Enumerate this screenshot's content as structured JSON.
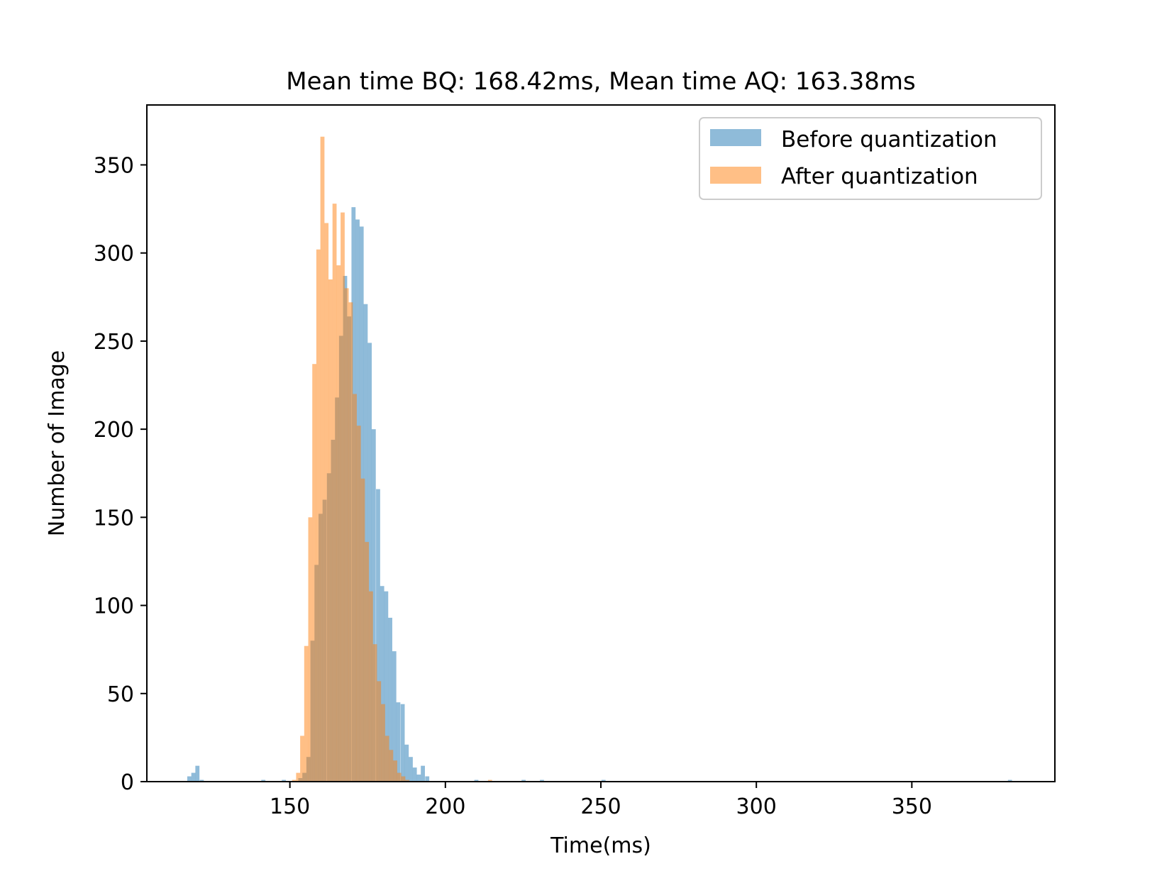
{
  "chart_data": {
    "type": "bar",
    "title": "Mean time BQ: 168.42ms, Mean time AQ: 163.38ms",
    "xlabel": "Time(ms)",
    "ylabel": "Number of Image",
    "xlim": [
      104,
      396
    ],
    "ylim": [
      0,
      384
    ],
    "xticks": [
      150,
      200,
      250,
      300,
      350
    ],
    "yticks": [
      0,
      50,
      100,
      150,
      200,
      250,
      300,
      350
    ],
    "grid": false,
    "legend_position": "top-right",
    "series": [
      {
        "name": "Before quantization",
        "color": "#1f77b4",
        "alpha": 0.5,
        "bin_width": 1.32,
        "bins": [
          [
            117.0,
            3
          ],
          [
            118.3,
            5
          ],
          [
            119.6,
            9
          ],
          [
            121.0,
            1
          ],
          [
            140.8,
            1
          ],
          [
            147.4,
            1
          ],
          [
            152.7,
            2
          ],
          [
            154.0,
            5
          ],
          [
            155.3,
            14
          ],
          [
            156.6,
            80
          ],
          [
            157.9,
            123
          ],
          [
            159.2,
            152
          ],
          [
            160.5,
            160
          ],
          [
            161.9,
            175
          ],
          [
            163.2,
            194
          ],
          [
            164.5,
            218
          ],
          [
            165.8,
            253
          ],
          [
            167.1,
            287
          ],
          [
            168.4,
            264
          ],
          [
            169.8,
            326
          ],
          [
            171.1,
            319
          ],
          [
            172.4,
            315
          ],
          [
            173.7,
            271
          ],
          [
            175.0,
            249
          ],
          [
            176.3,
            200
          ],
          [
            177.7,
            166
          ],
          [
            179.0,
            111
          ],
          [
            180.3,
            108
          ],
          [
            181.6,
            93
          ],
          [
            182.9,
            74
          ],
          [
            184.2,
            45
          ],
          [
            185.6,
            44
          ],
          [
            186.9,
            21
          ],
          [
            188.2,
            14
          ],
          [
            189.5,
            8
          ],
          [
            190.8,
            4
          ],
          [
            192.1,
            9
          ],
          [
            193.5,
            3
          ],
          [
            209.3,
            1
          ],
          [
            224.5,
            1
          ],
          [
            230.4,
            1
          ],
          [
            250.2,
            1
          ],
          [
            380.9,
            1
          ]
        ]
      },
      {
        "name": "After quantization",
        "color": "#ff7f0e",
        "alpha": 0.5,
        "bin_width": 1.32,
        "bins": [
          [
            150.7,
            1
          ],
          [
            152.0,
            5
          ],
          [
            153.3,
            26
          ],
          [
            154.6,
            77
          ],
          [
            155.9,
            150
          ],
          [
            157.2,
            237
          ],
          [
            158.5,
            302
          ],
          [
            159.8,
            366
          ],
          [
            161.1,
            317
          ],
          [
            162.4,
            285
          ],
          [
            163.7,
            328
          ],
          [
            165.0,
            293
          ],
          [
            166.3,
            323
          ],
          [
            167.6,
            280
          ],
          [
            168.9,
            272
          ],
          [
            170.2,
            220
          ],
          [
            171.5,
            202
          ],
          [
            172.8,
            172
          ],
          [
            174.1,
            136
          ],
          [
            175.4,
            108
          ],
          [
            176.7,
            78
          ],
          [
            178.0,
            57
          ],
          [
            179.3,
            44
          ],
          [
            180.6,
            26
          ],
          [
            181.9,
            18
          ],
          [
            183.2,
            12
          ],
          [
            184.5,
            5
          ],
          [
            185.8,
            3
          ],
          [
            187.1,
            1
          ],
          [
            213.7,
            1
          ]
        ]
      }
    ]
  }
}
